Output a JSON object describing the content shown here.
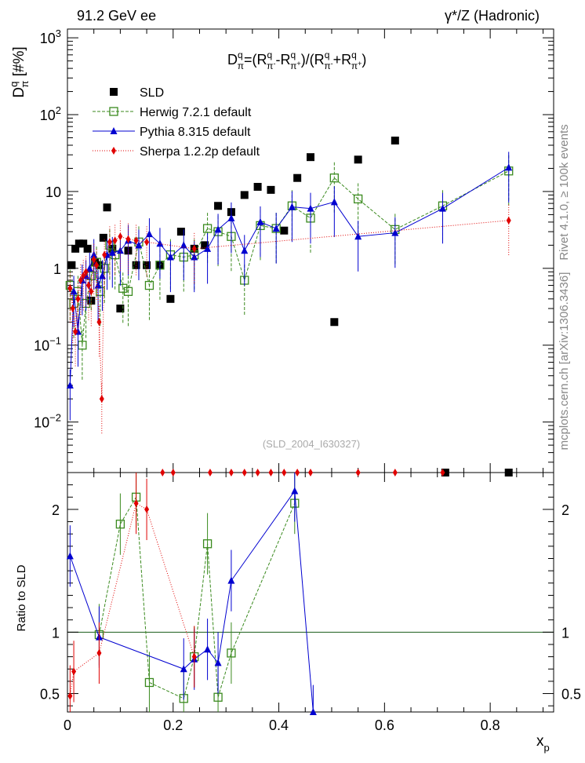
{
  "chart_data": {
    "type": "scatter",
    "header_left": "91.2 GeV ee",
    "header_right": "γ*/Z (Hadronic)",
    "formula": "D_π^q=(R_π⁻^q−R_π⁺^q)/(R_π⁻^q+R_π⁺^q)",
    "formula_parts": [
      "D",
      "q",
      "π",
      "=(R",
      "q",
      "π",
      "-",
      "-R",
      "q",
      "π",
      "+",
      ")/(R",
      "q",
      "π",
      "-",
      "+R",
      "q",
      "π",
      "+",
      ")"
    ],
    "ylabel_main": "D",
    "ylabel_sup": "q",
    "ylabel_sub": "π",
    "ylabel_unit": " [#%]",
    "ylabel_ratio": "Ratio to SLD",
    "xlabel": "x",
    "xlabel_sub": "p",
    "side_label_top": "Rivet 4.1.0, ≥ 100k events",
    "side_label_bottom": "mcplots.cern.ch [arXiv:1306.3436]",
    "watermark": "(SLD_2004_I630327)",
    "xlim": [
      0,
      0.92
    ],
    "ylim_main": [
      0.0022,
      1300
    ],
    "ylim_ratio": [
      0.35,
      2.3
    ],
    "x_ticks": [
      "0",
      "0.2",
      "0.4",
      "0.6",
      "0.8"
    ],
    "x_tick_values": [
      0,
      0.2,
      0.4,
      0.6,
      0.8
    ],
    "y_ticks_main": [
      {
        "v": 1000,
        "base": "10",
        "exp": "3"
      },
      {
        "v": 100,
        "base": "10",
        "exp": "2"
      },
      {
        "v": 10,
        "base": "10",
        "exp": ""
      },
      {
        "v": 1,
        "base": "1",
        "exp": ""
      },
      {
        "v": 0.1,
        "base": "10",
        "exp": "−1"
      },
      {
        "v": 0.01,
        "base": "10",
        "exp": "−2"
      }
    ],
    "y_ticks_ratio": [
      {
        "v": 2,
        "label": "2"
      },
      {
        "v": 1,
        "label": "1"
      },
      {
        "v": 0.5,
        "label": "0.5"
      }
    ],
    "legend": [
      {
        "label": "SLD",
        "color": "#000000",
        "marker": "square-filled",
        "line": "none"
      },
      {
        "label": "Herwig 7.2.1 default",
        "color": "#3a8a1e",
        "marker": "square-open",
        "line": "dashed"
      },
      {
        "label": "Pythia 8.315 default",
        "color": "#0000d0",
        "marker": "triangle",
        "line": "solid"
      },
      {
        "label": "Sherpa 1.2.2p default",
        "color": "#e00000",
        "marker": "diamond",
        "line": "dotted"
      }
    ],
    "series": [
      {
        "name": "SLD",
        "color": "#000000",
        "marker": "square-filled",
        "x": [
          0.008,
          0.015,
          0.022,
          0.03,
          0.038,
          0.045,
          0.052,
          0.06,
          0.068,
          0.075,
          0.085,
          0.1,
          0.115,
          0.13,
          0.15,
          0.175,
          0.195,
          0.215,
          0.24,
          0.26,
          0.285,
          0.31,
          0.335,
          0.36,
          0.385,
          0.41,
          0.435,
          0.46,
          0.505,
          0.55,
          0.62,
          0.715,
          0.835
        ],
        "y": [
          1.1,
          1.8,
          2.1,
          2.1,
          1.8,
          0.38,
          1.2,
          1.1,
          2.5,
          6.2,
          1.8,
          0.3,
          1.7,
          1.1,
          1.1,
          1.1,
          0.4,
          3.0,
          1.8,
          2.0,
          6.5,
          5.4,
          9.0,
          11.5,
          10.5,
          3.1,
          15.0,
          28.0,
          0.2,
          26.0,
          46.0,
          0,
          0
        ]
      },
      {
        "name": "Herwig 7.2.1 default",
        "color": "#3a8a1e",
        "marker": "square-open",
        "x": [
          0.005,
          0.012,
          0.02,
          0.028,
          0.035,
          0.045,
          0.055,
          0.062,
          0.07,
          0.08,
          0.09,
          0.105,
          0.115,
          0.135,
          0.155,
          0.175,
          0.195,
          0.22,
          0.24,
          0.265,
          0.285,
          0.31,
          0.335,
          0.365,
          0.395,
          0.425,
          0.46,
          0.505,
          0.55,
          0.62,
          0.71,
          0.835
        ],
        "y": [
          0.6,
          0.35,
          0.5,
          0.1,
          0.35,
          0.8,
          1.2,
          0.5,
          1.0,
          2.0,
          1.5,
          0.55,
          0.5,
          2.2,
          0.6,
          1.1,
          1.5,
          1.4,
          1.5,
          3.3,
          3.0,
          2.6,
          0.7,
          3.6,
          3.3,
          6.5,
          4.5,
          15.0,
          8.0,
          3.2,
          6.5,
          18.5
        ]
      },
      {
        "name": "Pythia 8.315 default",
        "color": "#0000d0",
        "marker": "triangle",
        "x": [
          0.005,
          0.012,
          0.02,
          0.028,
          0.035,
          0.042,
          0.05,
          0.058,
          0.066,
          0.075,
          0.085,
          0.1,
          0.115,
          0.135,
          0.155,
          0.175,
          0.195,
          0.22,
          0.24,
          0.265,
          0.285,
          0.31,
          0.335,
          0.365,
          0.395,
          0.425,
          0.46,
          0.505,
          0.55,
          0.62,
          0.71,
          0.835
        ],
        "y": [
          0.03,
          0.5,
          0.15,
          0.7,
          0.8,
          1.0,
          1.5,
          0.6,
          0.8,
          1.5,
          1.6,
          1.7,
          2.3,
          2.0,
          2.8,
          2.1,
          1.4,
          2.0,
          1.4,
          1.8,
          3.2,
          4.5,
          1.7,
          4.0,
          3.3,
          6.3,
          6.0,
          7.3,
          2.6,
          2.9,
          6.0,
          20.5
        ]
      },
      {
        "name": "Sherpa 1.2.2p default",
        "color": "#e00000",
        "marker": "diamond",
        "x": [
          0.005,
          0.01,
          0.015,
          0.02,
          0.025,
          0.03,
          0.035,
          0.04,
          0.045,
          0.05,
          0.055,
          0.06,
          0.065,
          0.07,
          0.08,
          0.09,
          0.1,
          0.115,
          0.13,
          0.15,
          0.24,
          0.835
        ],
        "y": [
          0.55,
          0.3,
          0.15,
          0.4,
          0.7,
          0.8,
          0.9,
          0.6,
          0.5,
          1.3,
          1.1,
          0.2,
          0.02,
          1.5,
          2.2,
          2.3,
          2.6,
          2.4,
          2.3,
          2.2,
          1.8,
          4.2
        ]
      }
    ],
    "ratio_series": [
      {
        "name": "Herwig 7.2.1 default",
        "color": "#3a8a1e",
        "x": [
          0.06,
          0.1,
          0.13,
          0.155,
          0.22,
          0.24,
          0.265,
          0.285,
          0.31,
          0.43
        ],
        "y": [
          0.98,
          1.88,
          2.1,
          0.59,
          0.46,
          0.8,
          1.72,
          0.47,
          0.83,
          2.05
        ]
      },
      {
        "name": "Pythia 8.315 default",
        "color": "#0000d0",
        "x": [
          0.005,
          0.06,
          0.22,
          0.24,
          0.265,
          0.285,
          0.31,
          0.43,
          0.465
        ],
        "y": [
          1.62,
          0.96,
          0.7,
          0.78,
          0.86,
          0.75,
          1.42,
          2.15,
          0.32
        ]
      },
      {
        "name": "Sherpa 1.2.2p default",
        "color": "#e00000",
        "x": [
          0.005,
          0.012,
          0.06,
          0.13,
          0.15,
          0.24
        ],
        "y": [
          0.48,
          0.68,
          0.83,
          2.05,
          2.0,
          0.8
        ]
      }
    ]
  }
}
